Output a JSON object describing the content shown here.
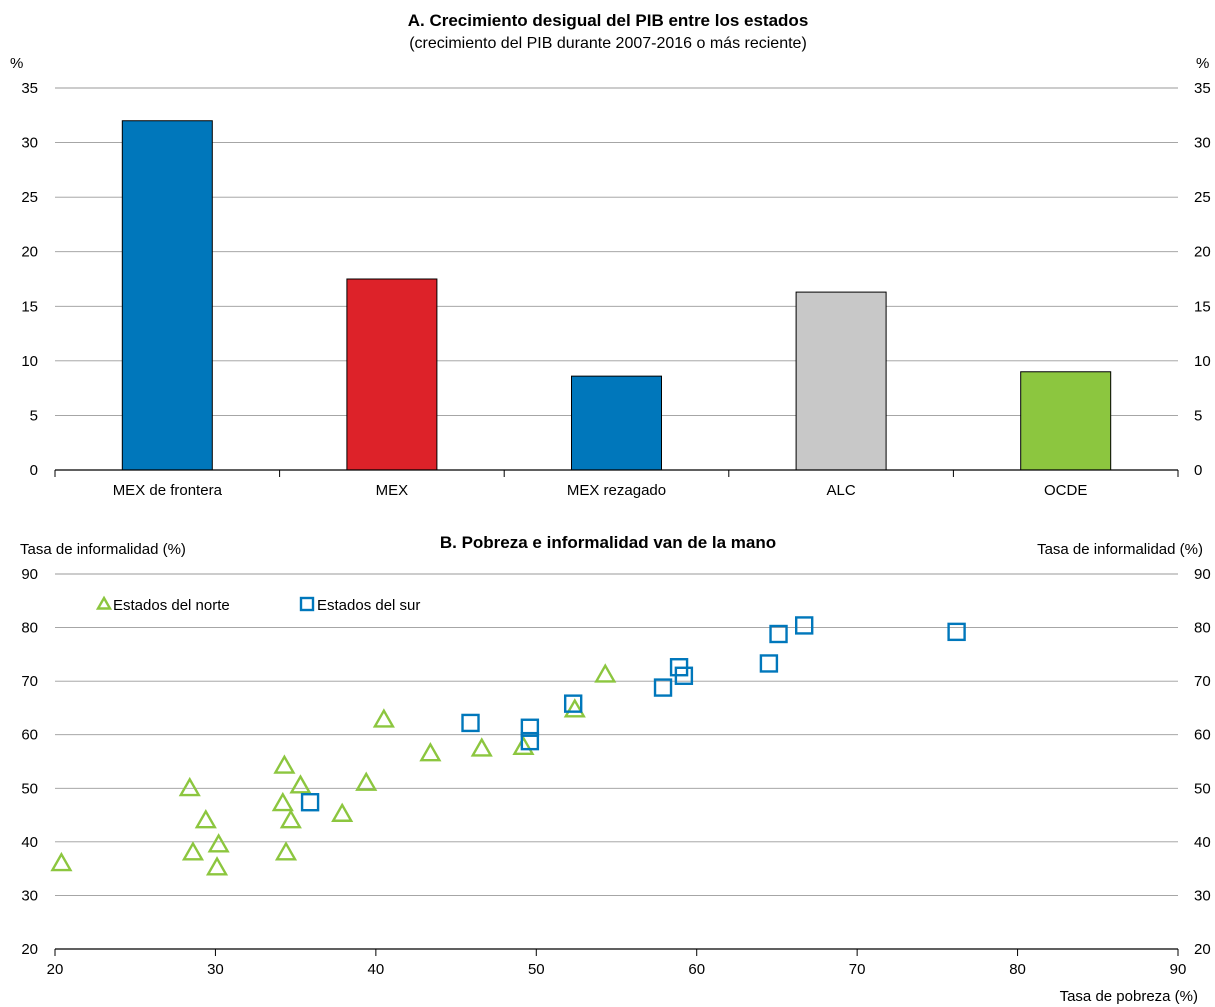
{
  "chart_data": [
    {
      "type": "bar",
      "title": "A. Crecimiento desigual del PIB entre los estados",
      "subtitle": "(crecimiento del PIB durante 2007-2016 o más reciente)",
      "ylabel_left": "%",
      "ylabel_right": "%",
      "ylim": [
        0,
        35
      ],
      "yticks": [
        0,
        5,
        10,
        15,
        20,
        25,
        30,
        35
      ],
      "grid": true,
      "categories": [
        "MEX de frontera",
        "MEX",
        "MEX rezagado",
        "ALC",
        "OCDE"
      ],
      "values": [
        32,
        17.5,
        8.6,
        16.3,
        9
      ],
      "colors": [
        "#0077bb",
        "#dd2229",
        "#0077bb",
        "#c8c8c8",
        "#8cc63f"
      ]
    },
    {
      "type": "scatter",
      "title": "B. Pobreza e informalidad van de la mano",
      "ylabel_left": "Tasa de  informalidad (%)",
      "ylabel_right": "Tasa de informalidad (%)",
      "xlabel": "Tasa de pobreza (%)",
      "xlim": [
        20,
        90
      ],
      "ylim": [
        20,
        90
      ],
      "xticks": [
        20,
        30,
        40,
        50,
        60,
        70,
        80,
        90
      ],
      "yticks": [
        20,
        30,
        40,
        50,
        60,
        70,
        80,
        90
      ],
      "grid": true,
      "legend_position": "top-left",
      "series": [
        {
          "name": "Estados del norte",
          "marker": "triangle",
          "color": "#8cc63f",
          "points": [
            [
              20.4,
              36
            ],
            [
              28.4,
              50
            ],
            [
              28.6,
              38
            ],
            [
              29.4,
              44
            ],
            [
              30.2,
              39.5
            ],
            [
              30.1,
              35.2
            ],
            [
              34.3,
              54.2
            ],
            [
              34.2,
              47.2
            ],
            [
              34.7,
              44
            ],
            [
              34.4,
              38
            ],
            [
              35.3,
              50.5
            ],
            [
              37.9,
              45.2
            ],
            [
              39.4,
              51
            ],
            [
              40.5,
              62.8
            ],
            [
              43.4,
              56.5
            ],
            [
              46.6,
              57.4
            ],
            [
              49.2,
              57.7
            ],
            [
              52.4,
              64.7
            ],
            [
              54.3,
              71.2
            ]
          ]
        },
        {
          "name": "Estados del sur",
          "marker": "square",
          "color": "#0077bb",
          "points": [
            [
              35.9,
              47.4
            ],
            [
              45.9,
              62.2
            ],
            [
              49.6,
              61.3
            ],
            [
              49.6,
              58.8
            ],
            [
              52.3,
              65.8
            ],
            [
              57.9,
              68.8
            ],
            [
              58.9,
              72.6
            ],
            [
              59.2,
              71
            ],
            [
              64.5,
              73.3
            ],
            [
              65.1,
              78.8
            ],
            [
              66.7,
              80.4
            ],
            [
              76.2,
              79.2
            ]
          ]
        }
      ]
    }
  ]
}
